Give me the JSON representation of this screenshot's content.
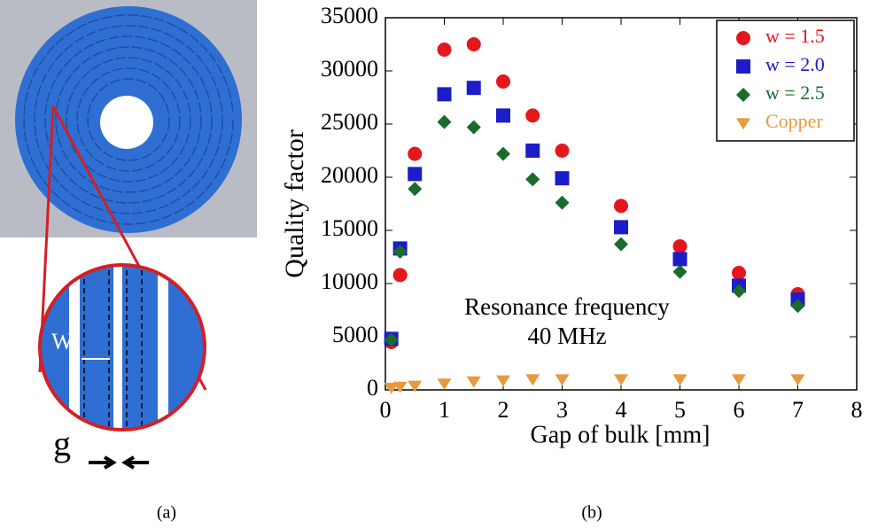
{
  "panel_a": {
    "labels": [
      "W",
      "g"
    ],
    "caption": "(a)"
  },
  "chart_data": {
    "type": "scatter",
    "caption": "(b)",
    "x_label": "Gap of bulk [mm]",
    "y_label": "Quality factor",
    "annotation": [
      "Resonance frequency",
      "40 MHz"
    ],
    "x": [
      0.1,
      0.25,
      0.5,
      1,
      1.5,
      2,
      2.5,
      3,
      4,
      5,
      6,
      7
    ],
    "series": [
      {
        "name": "w = 1.5",
        "color": "#e4161e",
        "marker": "circle",
        "values": [
          4500,
          10800,
          22200,
          32000,
          32500,
          29000,
          25800,
          22500,
          17300,
          13500,
          11000,
          9000
        ]
      },
      {
        "name": "w = 2.0",
        "color": "#1c1cc8",
        "marker": "square",
        "values": [
          4800,
          13300,
          20300,
          27800,
          28400,
          25800,
          22500,
          19900,
          15300,
          12300,
          9800,
          8500
        ]
      },
      {
        "name": "w = 2.5",
        "color": "#1b6b2c",
        "marker": "diamond",
        "values": [
          4700,
          13000,
          18900,
          25200,
          24700,
          22200,
          19800,
          17600,
          13700,
          11100,
          9300,
          7900
        ]
      },
      {
        "name": "Copper",
        "color": "#e89a3c",
        "marker": "triangle-down",
        "values": [
          200,
          300,
          400,
          600,
          800,
          900,
          1000,
          1000,
          1000,
          1000,
          1000,
          1000
        ]
      }
    ],
    "xlim": [
      0,
      8
    ],
    "xticks": [
      0,
      1,
      2,
      3,
      4,
      5,
      6,
      7,
      8
    ],
    "ylim": [
      0,
      35000
    ],
    "yticks": [
      0,
      5000,
      10000,
      15000,
      20000,
      25000,
      30000,
      35000
    ],
    "legend": "upper right"
  }
}
